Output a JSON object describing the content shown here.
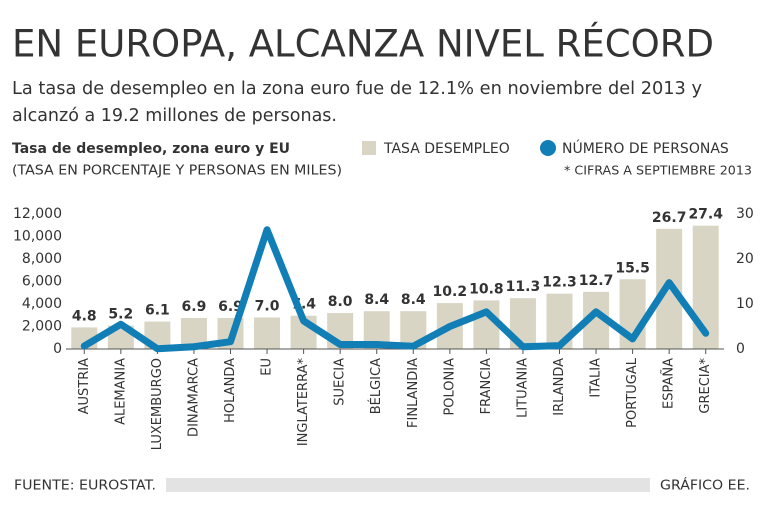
{
  "header": {
    "title": "EN EUROPA, ALCANZA NIVEL RÉCORD",
    "subtitle": [
      "La tasa de desempleo en la zona euro fue de 12.1% en noviembre del 2013 y",
      "alcanzó a 19.2 millones de personas."
    ]
  },
  "chart_data": {
    "type": "bar",
    "title": "Tasa de desempleo, zona euro y EU",
    "subtitle": "(TASA EN PORCENTAJE Y PERSONAS EN MILES)",
    "note": "* CIFRAS A SEPTIEMBRE 2013",
    "categories": [
      "AUSTRIA",
      "ALEMANIA",
      "LUXEMBURGO",
      "DINAMARCA",
      "HOLANDA",
      "EU",
      "INGLATERRA*",
      "SUECIA",
      "BÉLGICA",
      "FINLANDIA",
      "POLONIA",
      "FRANCIA",
      "LITUANIA",
      "IRLANDA",
      "ITALIA",
      "PORTUGAL",
      "ESPAÑA",
      "GRECIA*"
    ],
    "series": [
      {
        "name": "TASA DESEMPLEO",
        "type": "bar",
        "axis": "y2",
        "color": "#d8d5c4",
        "values": [
          4.8,
          5.2,
          6.1,
          6.9,
          6.9,
          7.0,
          7.4,
          8.0,
          8.4,
          8.4,
          10.2,
          10.8,
          11.3,
          12.3,
          12.7,
          15.5,
          26.7,
          27.4
        ],
        "value_labels": [
          "4.8",
          "5.2",
          "6.1",
          "6.9",
          "6.9",
          "7.0",
          "7.4",
          "8.0",
          "8.4",
          "8.4",
          "10.2",
          "10.8",
          "11.3",
          "12.3",
          "12.7",
          "15.5",
          "26.7",
          "27.4"
        ]
      },
      {
        "name": "NÚMERO DE PERSONAS",
        "type": "line",
        "color": "#117fb6",
        "values": [
          270,
          2200,
          20,
          200,
          650,
          10600,
          2500,
          400,
          400,
          250,
          2000,
          3300,
          200,
          300,
          3300,
          900,
          5900,
          1400
        ]
      }
    ],
    "ylim": [
      0,
      12000
    ],
    "yticks": [
      0,
      {
        "value": 2000,
        "label": "2,000"
      },
      {
        "value": 4000,
        "label": "4,000"
      },
      {
        "value": 6000,
        "label": "6,000"
      },
      {
        "value": 8000,
        "label": "8,000"
      },
      {
        "value": 10000,
        "label": "10,000"
      },
      {
        "value": 12000,
        "label": "12,000"
      }
    ],
    "y2lim": [
      0,
      30
    ],
    "y2ticks": [
      0,
      10,
      20,
      30
    ]
  },
  "footer": {
    "source": "FUENTE: EUROSTAT.",
    "credit": "GRÁFICO EE."
  }
}
